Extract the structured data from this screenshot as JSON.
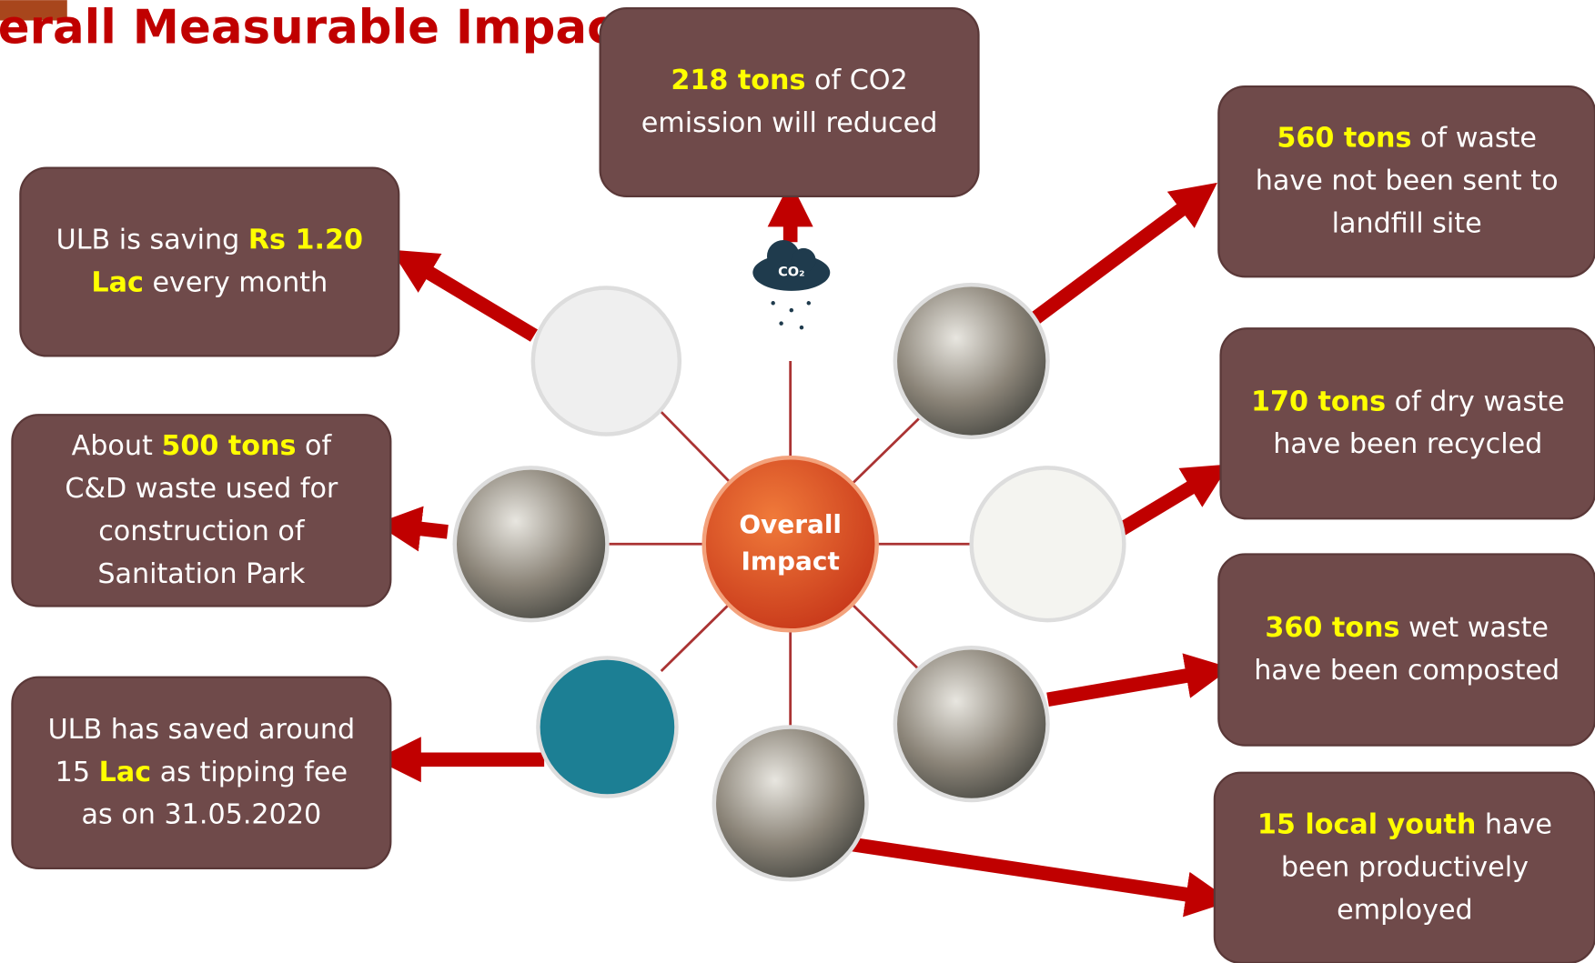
{
  "header": {
    "title": "erall Measurable Impact"
  },
  "center": {
    "label": [
      "Overall",
      "Impact"
    ]
  },
  "boxes": [
    {
      "lines": [
        [
          {
            "text": "218 tons",
            "highlight": true
          },
          " of CO2"
        ],
        [
          "emission will reduced"
        ]
      ]
    },
    {
      "lines": [
        [
          "ULB is saving ",
          {
            "text": "Rs 1.20",
            "highlight": true
          }
        ],
        [
          {
            "text": "Lac",
            "highlight": true
          },
          " every month"
        ]
      ]
    },
    {
      "lines": [
        [
          "About ",
          {
            "text": "500 tons",
            "highlight": true
          },
          " of"
        ],
        [
          "C&D waste used for"
        ],
        [
          "construction of"
        ],
        [
          "Sanitation Park"
        ]
      ]
    },
    {
      "lines": [
        [
          "ULB has saved around"
        ],
        [
          "15 ",
          {
            "text": "Lac",
            "highlight": true
          },
          " as tipping fee"
        ],
        [
          "as on 31.05.2020"
        ]
      ]
    },
    {
      "lines": [
        [
          {
            "text": "560 tons",
            "highlight": true
          },
          " of waste"
        ],
        [
          "have not been sent to"
        ],
        [
          "landfill site"
        ]
      ]
    },
    {
      "lines": [
        [
          {
            "text": "170 tons",
            "highlight": true
          },
          " of dry waste"
        ],
        [
          "have been recycled"
        ]
      ]
    },
    {
      "lines": [
        [
          {
            "text": "360 tons",
            "highlight": true
          },
          " wet waste"
        ],
        [
          "have been composted"
        ]
      ]
    },
    {
      "lines": [
        [
          {
            "text": "15 local youth",
            "highlight": true
          },
          " have"
        ],
        [
          "been productively"
        ],
        [
          "employed"
        ]
      ]
    }
  ]
}
